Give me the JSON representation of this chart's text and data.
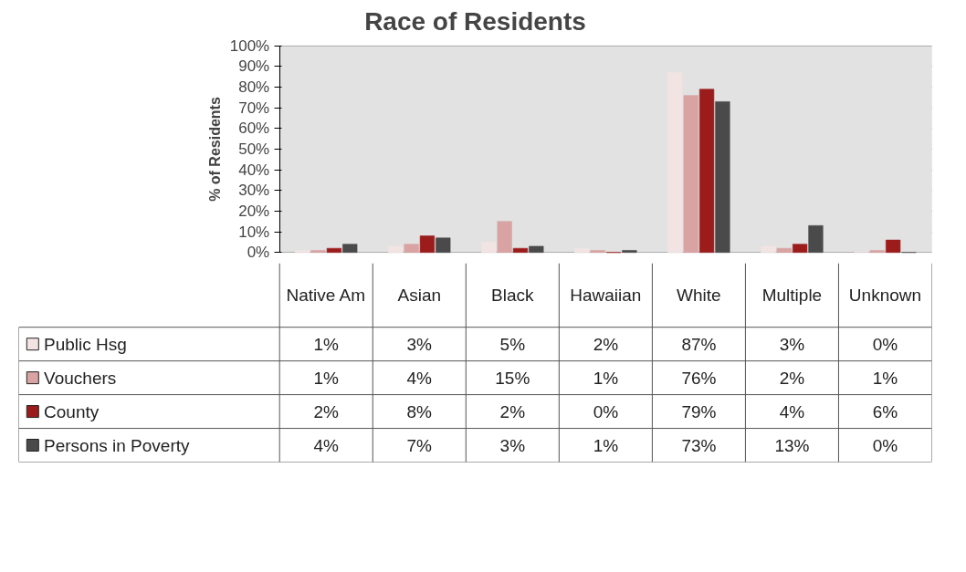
{
  "chart_data": {
    "type": "bar",
    "title": "Race of Residents",
    "ylabel": "% of Residents",
    "categories": [
      "Native Am",
      "Asian",
      "Black",
      "Hawaiian",
      "White",
      "Multiple",
      "Unknown"
    ],
    "series": [
      {
        "name": "Public Hsg",
        "color": "#f3e4e4",
        "values": [
          1,
          3,
          5,
          2,
          87,
          3,
          0
        ],
        "value_labels": [
          "1%",
          "3%",
          "5%",
          "2%",
          "87%",
          "3%",
          "0%"
        ]
      },
      {
        "name": "Vouchers",
        "color": "#d9a3a3",
        "values": [
          1,
          4,
          15,
          1,
          76,
          2,
          1
        ],
        "value_labels": [
          "1%",
          "4%",
          "15%",
          "1%",
          "76%",
          "2%",
          "1%"
        ]
      },
      {
        "name": "County",
        "color": "#9c1c1c",
        "values": [
          2,
          8,
          2,
          0,
          79,
          4,
          6
        ],
        "value_labels": [
          "2%",
          "8%",
          "2%",
          "0%",
          "79%",
          "4%",
          "6%"
        ]
      },
      {
        "name": "Persons in Poverty",
        "color": "#4a4a4a",
        "values": [
          4,
          7,
          3,
          1,
          73,
          13,
          0
        ],
        "value_labels": [
          "4%",
          "7%",
          "3%",
          "1%",
          "73%",
          "13%",
          "0%"
        ]
      }
    ],
    "ylim": [
      0,
      100
    ],
    "yticks": [
      {
        "value": 0,
        "label": "0%"
      },
      {
        "value": 10,
        "label": "10%"
      },
      {
        "value": 20,
        "label": "20%"
      },
      {
        "value": 30,
        "label": "30%"
      },
      {
        "value": 40,
        "label": "40%"
      },
      {
        "value": 50,
        "label": "50%"
      },
      {
        "value": 60,
        "label": "60%"
      },
      {
        "value": 70,
        "label": "70%"
      },
      {
        "value": 80,
        "label": "80%"
      },
      {
        "value": 90,
        "label": "90%"
      },
      {
        "value": 100,
        "label": "100%"
      }
    ],
    "grid": "y",
    "legend": "bottom"
  }
}
